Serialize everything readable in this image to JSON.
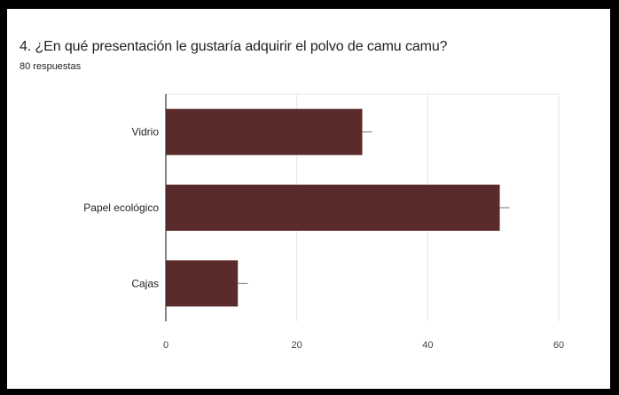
{
  "question": {
    "title": "4. ¿En qué presentación le gustaría adquirir el polvo de camu camu?",
    "responses": "80 respuestas"
  },
  "colors": {
    "bar": "#5b2a2b",
    "grid": "#e6e6e6",
    "axis": "#333333",
    "errorbar": "#777777"
  },
  "chart_data": {
    "type": "bar",
    "orientation": "horizontal",
    "categories": [
      "Vidrio",
      "Papel ecológico",
      "Cajas"
    ],
    "values": [
      30,
      51,
      11
    ],
    "error_bar_extent": 1.5,
    "xlim": [
      0,
      60
    ],
    "xticks": [
      "0",
      "20",
      "40",
      "60"
    ],
    "grid": true,
    "title": "",
    "xlabel": "",
    "ylabel": ""
  }
}
